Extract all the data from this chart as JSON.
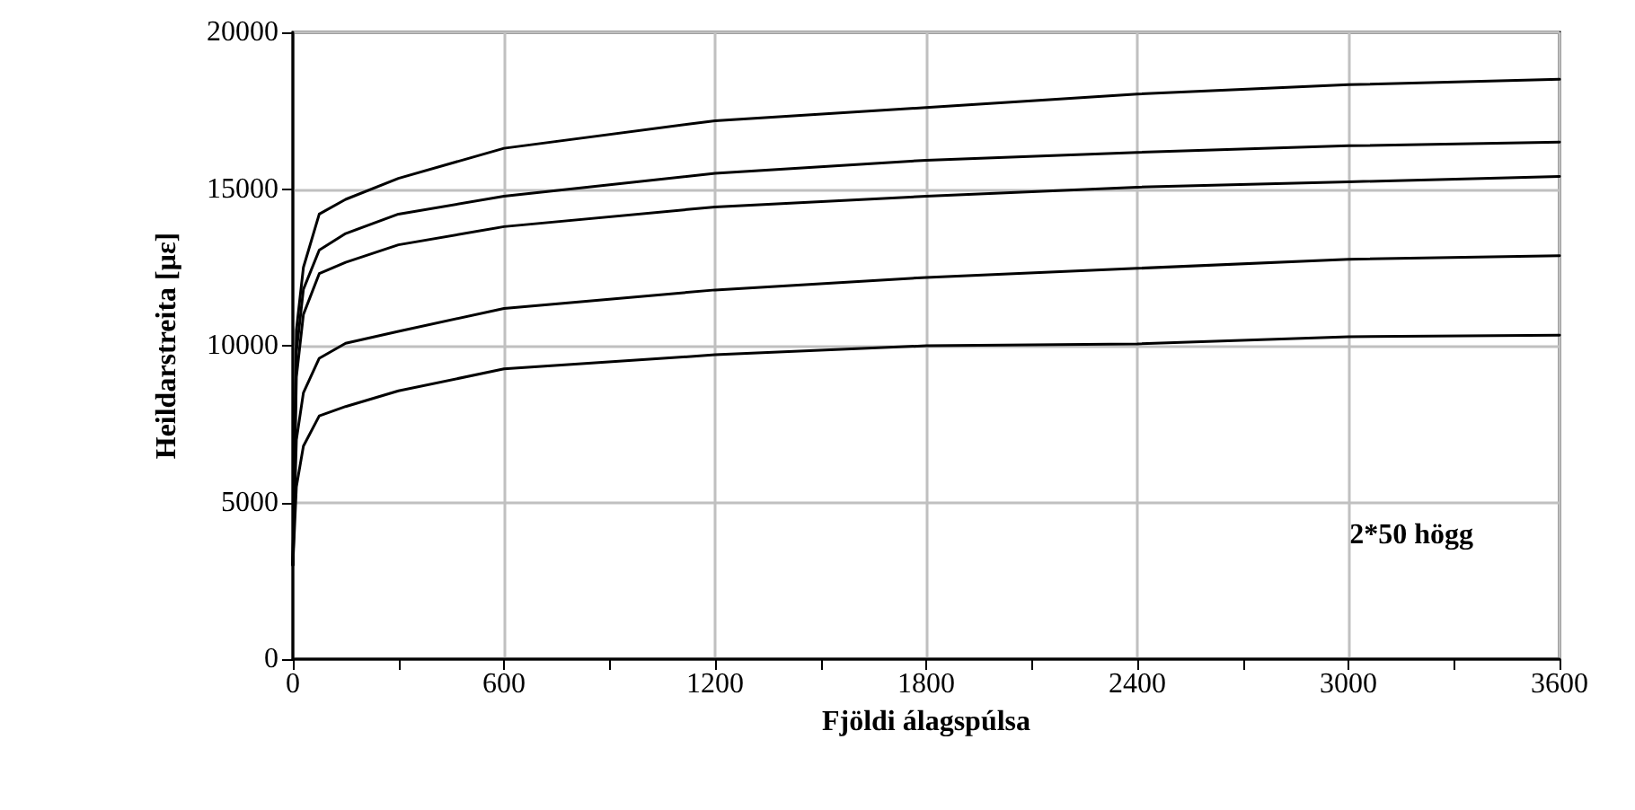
{
  "chart_data": {
    "type": "line",
    "xlabel": "Fjöldi álagspúlsa",
    "ylabel": "Heildarstreita [με]",
    "annotations": [
      "2*50 högg"
    ],
    "x": [
      0,
      10,
      30,
      75,
      150,
      300,
      600,
      1200,
      1800,
      2400,
      3000,
      3600
    ],
    "series": [
      {
        "color": "#000000",
        "values": [
          3000,
          10500,
          12500,
          14200,
          14670,
          15340,
          16300,
          17180,
          17600,
          18030,
          18330,
          18500
        ]
      },
      {
        "color": "#000000",
        "values": [
          3000,
          9800,
          11800,
          13050,
          13580,
          14200,
          14770,
          15500,
          15920,
          16170,
          16380,
          16500
        ]
      },
      {
        "color": "#000000",
        "values": [
          3000,
          9000,
          11000,
          12300,
          12660,
          13220,
          13800,
          14430,
          14770,
          15060,
          15230,
          15400
        ]
      },
      {
        "color": "#000000",
        "values": [
          3000,
          7000,
          8500,
          9600,
          10080,
          10460,
          11190,
          11780,
          12180,
          12470,
          12760,
          12870
        ]
      },
      {
        "color": "#000000",
        "values": [
          3000,
          5500,
          6800,
          7760,
          8060,
          8560,
          9260,
          9710,
          10000,
          10060,
          10290,
          10340
        ]
      }
    ],
    "xlim": [
      0,
      3600
    ],
    "xticks": [
      0,
      {
        "value": 300,
        "label": null
      },
      600,
      {
        "value": 900,
        "label": null
      },
      1200,
      {
        "value": 1500,
        "label": null
      },
      1800,
      {
        "value": 2100,
        "label": null
      },
      2400,
      {
        "value": 2700,
        "label": null
      },
      3000,
      {
        "value": 3300,
        "label": null
      },
      3600
    ],
    "ylim": [
      0,
      20000
    ],
    "yticks": [
      0,
      5000,
      10000,
      15000,
      20000
    ],
    "grid": true,
    "marker": "none",
    "line_style": "solid"
  }
}
